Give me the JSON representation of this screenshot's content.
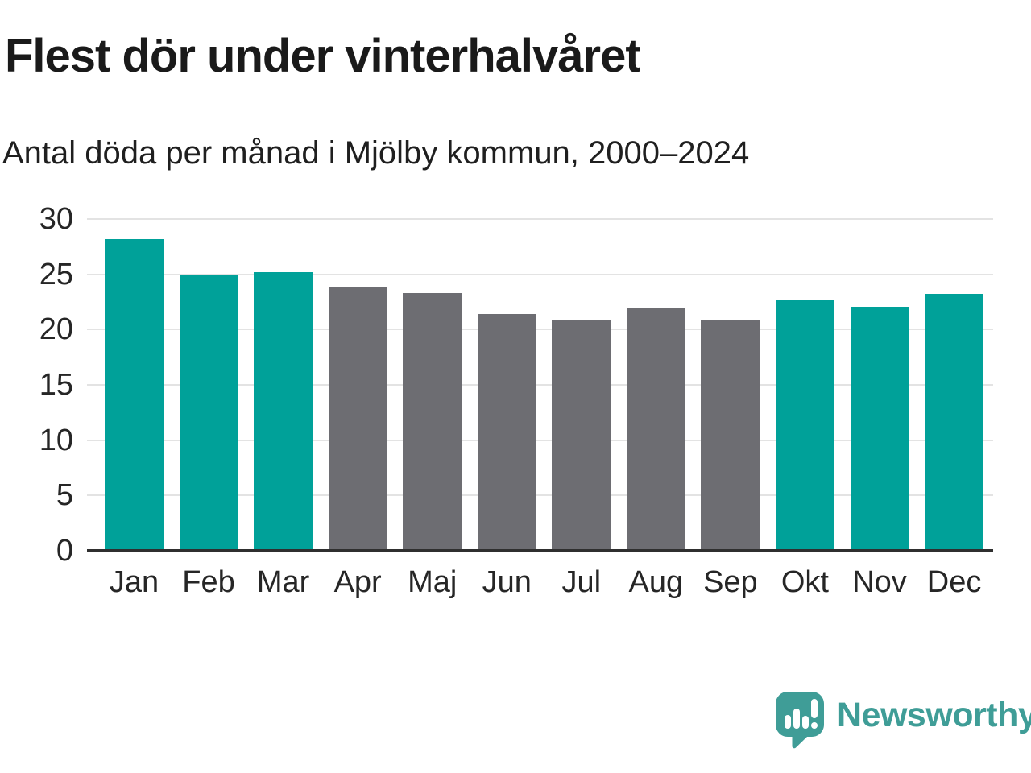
{
  "header": {
    "title": "Flest dör under vinterhalvåret",
    "subtitle": "Antal döda per månad i Mjölby kommun, 2000–2024"
  },
  "chart_data": {
    "type": "bar",
    "title": "Flest dör under vinterhalvåret",
    "subtitle": "Antal döda per månad i Mjölby kommun, 2000–2024",
    "categories": [
      "Jan",
      "Feb",
      "Mar",
      "Apr",
      "Maj",
      "Jun",
      "Jul",
      "Aug",
      "Sep",
      "Okt",
      "Nov",
      "Dec"
    ],
    "values": [
      28.2,
      25.0,
      25.2,
      23.9,
      23.3,
      21.4,
      20.8,
      22.0,
      20.8,
      22.7,
      22.1,
      23.2
    ],
    "xlabel": "",
    "ylabel": "",
    "ylim": [
      0,
      30
    ],
    "yticks": [
      0,
      5,
      10,
      15,
      20,
      25,
      30
    ],
    "grid": true,
    "legend": false,
    "highlighted_categories": [
      "Jan",
      "Feb",
      "Mar",
      "Okt",
      "Nov",
      "Dec"
    ],
    "colors": {
      "highlight_bar": "#00a199",
      "default_bar": "#6d6d72",
      "gridline": "#e3e3e3",
      "axis": "#2f2f2f"
    }
  },
  "footer": {
    "brand": "Newsworthy",
    "logo_icon": "newsworthy-speech-bubble-bar-chart-icon",
    "brand_color": "#3f9d97"
  }
}
